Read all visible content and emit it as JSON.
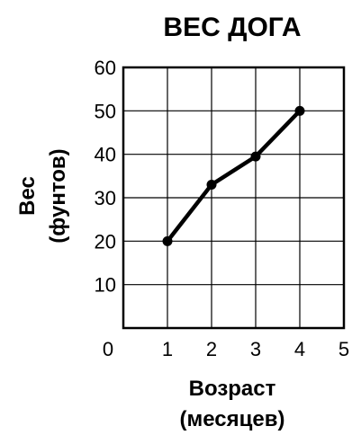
{
  "chart_data": {
    "type": "line",
    "title": "ВЕС ДОГА",
    "xlabel_line1": "Возраст",
    "xlabel_line2": "(месяцев)",
    "ylabel_line1": "Вес",
    "ylabel_line2": "(фунтов)",
    "x_ticks": [
      "0",
      "1",
      "2",
      "3",
      "4",
      "5"
    ],
    "y_ticks": [
      "10",
      "20",
      "30",
      "40",
      "50",
      "60"
    ],
    "xlim": [
      0,
      5
    ],
    "ylim": [
      0,
      60
    ],
    "grid": true,
    "series": [
      {
        "x": [
          1,
          2,
          3,
          4
        ],
        "y": [
          20,
          33,
          39.5,
          50
        ]
      }
    ],
    "line_color": "#000000"
  }
}
